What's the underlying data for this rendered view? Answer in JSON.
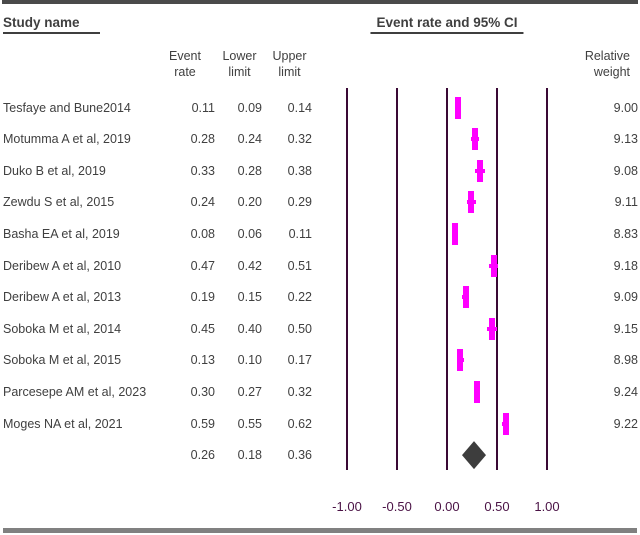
{
  "page": {
    "top_bar_color": "#4a4a4a",
    "bottom_bar_color": "#808080",
    "background": "#ffffff",
    "text_color": "#404040"
  },
  "header": {
    "left_title": "Study name",
    "right_title": "Event rate and 95% CI"
  },
  "columns": {
    "event_rate": "Event\nrate",
    "lower_limit": "Lower\nlimit",
    "upper_limit": "Upper\nlimit",
    "relative_weight": "Relative\nweight"
  },
  "chart_data": {
    "type": "scatter",
    "subtype": "forest-plot",
    "title": "Event rate and 95% CI",
    "xlabel": "",
    "ylabel": "",
    "x_ticks": [
      "-1.00",
      "-0.50",
      "0.00",
      "0.50",
      "1.00"
    ],
    "x_tick_values": [
      -1.0,
      -0.5,
      0.0,
      0.5,
      1.0
    ],
    "xlim": [
      -1.17,
      1.17
    ],
    "grid": "vertical-reference-lines",
    "legend": "none",
    "studies": [
      {
        "name": "Tesfaye and Bune2014",
        "event_rate": "0.11",
        "lower": "0.09",
        "upper": "0.14",
        "weight": "9.00"
      },
      {
        "name": "Motumma A et al, 2019",
        "event_rate": "0.28",
        "lower": "0.24",
        "upper": "0.32",
        "weight": "9.13"
      },
      {
        "name": "Duko B et al, 2019",
        "event_rate": "0.33",
        "lower": "0.28",
        "upper": "0.38",
        "weight": "9.08"
      },
      {
        "name": "Zewdu S et al, 2015",
        "event_rate": "0.24",
        "lower": "0.20",
        "upper": "0.29",
        "weight": "9.11"
      },
      {
        "name": "Basha EA et al, 2019",
        "event_rate": "0.08",
        "lower": "0.06",
        "upper": "0.11",
        "weight": "8.83"
      },
      {
        "name": "Deribew A et al, 2010",
        "event_rate": "0.47",
        "lower": "0.42",
        "upper": "0.51",
        "weight": "9.18"
      },
      {
        "name": "Deribew A et al, 2013",
        "event_rate": "0.19",
        "lower": "0.15",
        "upper": "0.22",
        "weight": "9.09"
      },
      {
        "name": "Soboka M et al, 2014",
        "event_rate": "0.45",
        "lower": "0.40",
        "upper": "0.50",
        "weight": "9.15"
      },
      {
        "name": "Soboka M et al, 2015",
        "event_rate": "0.13",
        "lower": "0.10",
        "upper": "0.17",
        "weight": "8.98"
      },
      {
        "name": "Parcesepe AM et al, 2023",
        "event_rate": "0.30",
        "lower": "0.27",
        "upper": "0.32",
        "weight": "9.24"
      },
      {
        "name": "Moges NA et al, 2021",
        "event_rate": "0.59",
        "lower": "0.55",
        "upper": "0.62",
        "weight": "9.22"
      }
    ],
    "summary": {
      "event_rate": "0.26",
      "lower": "0.18",
      "upper": "0.36"
    },
    "colors": {
      "marker": "#ff00ff",
      "gridline": "#3a0935",
      "tick_label": "#4a1245",
      "diamond": "#3d3d3d"
    }
  }
}
